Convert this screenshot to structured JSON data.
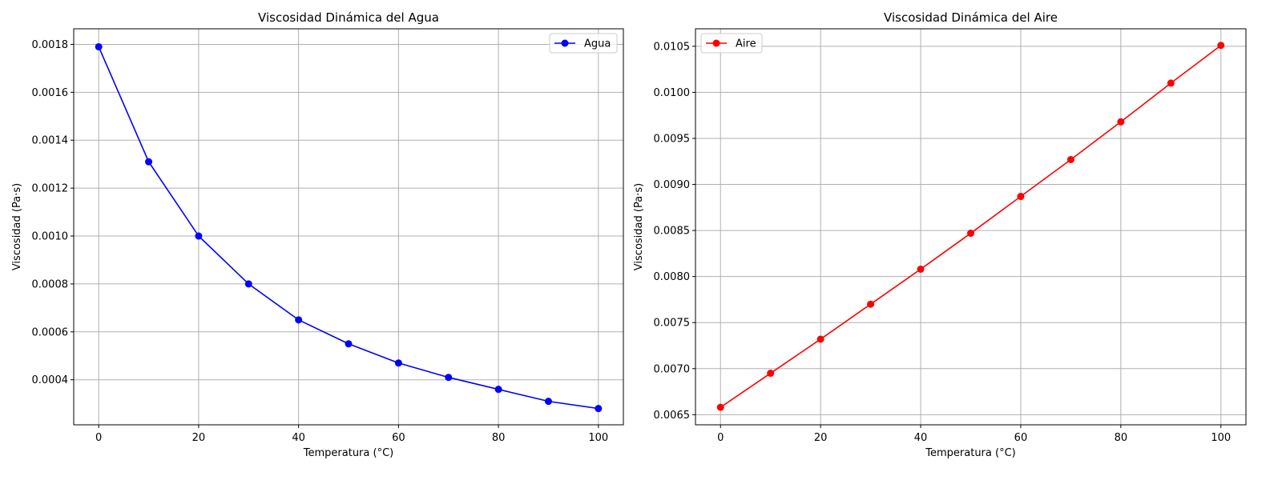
{
  "chart_data": [
    {
      "type": "line",
      "title": "Viscosidad Dinámica del Agua",
      "xlabel": "Temperatura (°C)",
      "ylabel": "Viscosidad (Pa·s)",
      "xlim": [
        -5,
        105
      ],
      "ylim": [
        0.000212,
        0.001865
      ],
      "xticks": [
        "0",
        "20",
        "40",
        "60",
        "80",
        "100"
      ],
      "yticks": [
        "0.0004",
        "0.0006",
        "0.0008",
        "0.0010",
        "0.0012",
        "0.0014",
        "0.0016",
        "0.0018"
      ],
      "grid": true,
      "legend_position": "top-right",
      "series": [
        {
          "name": "Agua",
          "color": "#0000ff",
          "marker": "circle",
          "x": [
            0,
            10,
            20,
            30,
            40,
            50,
            60,
            70,
            80,
            90,
            100
          ],
          "y": [
            0.00179,
            0.00131,
            0.001,
            0.0008,
            0.00065,
            0.00055,
            0.00047,
            0.00041,
            0.00036,
            0.00031,
            0.00028
          ]
        }
      ]
    },
    {
      "type": "line",
      "title": "Viscosidad Dinámica del Aire",
      "xlabel": "Temperatura (°C)",
      "ylabel": "Viscosidad (Pa·s)",
      "xlim": [
        -5,
        105
      ],
      "ylim": [
        0.00639,
        0.01069
      ],
      "xticks": [
        "0",
        "20",
        "40",
        "60",
        "80",
        "100"
      ],
      "yticks": [
        "0.0065",
        "0.0070",
        "0.0075",
        "0.0080",
        "0.0085",
        "0.0090",
        "0.0095",
        "0.0100",
        "0.0105"
      ],
      "grid": true,
      "legend_position": "top-left",
      "series": [
        {
          "name": "Aire",
          "color": "#ff0000",
          "marker": "circle",
          "x": [
            0,
            10,
            20,
            30,
            40,
            50,
            60,
            70,
            80,
            90,
            100
          ],
          "y": [
            0.00658,
            0.00695,
            0.00732,
            0.0077,
            0.00808,
            0.00847,
            0.00887,
            0.00927,
            0.00968,
            0.0101,
            0.01051
          ]
        }
      ]
    }
  ]
}
